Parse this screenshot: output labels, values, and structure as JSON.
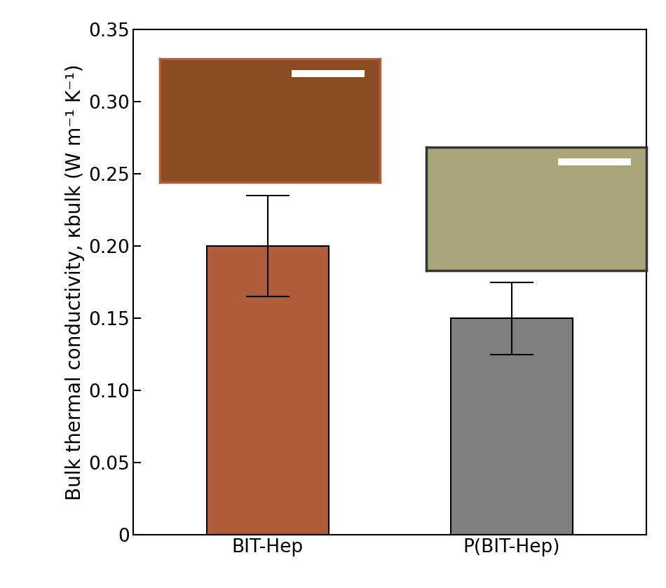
{
  "chart_data": {
    "type": "bar",
    "y_label": "Bulk thermal conductivity, κbulk (W m⁻¹ K⁻¹)",
    "categories": [
      "BIT-Hep",
      "P(BIT-Hep)"
    ],
    "values": [
      0.2,
      0.15
    ],
    "errors": [
      0.035,
      0.025
    ],
    "colors": [
      "#b05e3a",
      "#808080"
    ],
    "ylim": [
      0,
      0.35
    ],
    "yticks": [
      0,
      0.05,
      {
        "value": 0.1,
        "label": "0.10"
      },
      0.15,
      {
        "value": 0.2,
        "label": "0.20"
      },
      0.25,
      {
        "value": 0.3,
        "label": "0.30"
      },
      0.35
    ],
    "grid": false
  }
}
